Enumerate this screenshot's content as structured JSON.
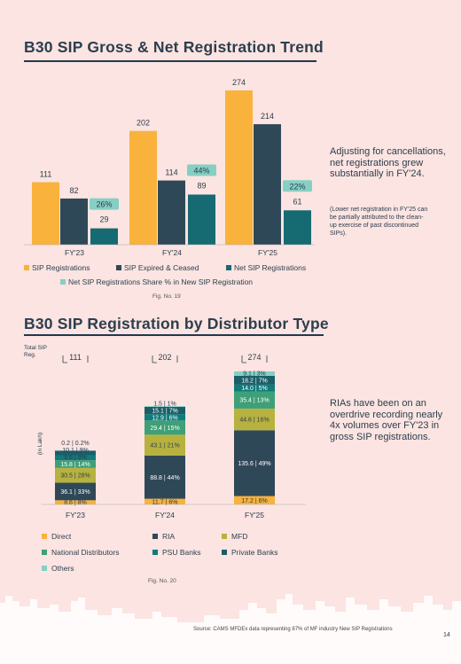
{
  "section1": {
    "title": "B30 SIP Gross & Net Registration Trend",
    "fig_label": "Fig. No. 19",
    "side_text": "Adjusting for cancellations, net registrations grew substantially in FY'24.",
    "side_note": "(Lower net registration in FY'25 can be partially attributed to the clean-up exercise of past discontinued SIPs)."
  },
  "section2": {
    "title": "B30 SIP Registration by Distributor Type",
    "fig_label": "Fig. No. 20",
    "side_text": "RIAs have been on an overdrive recording nearly 4x volumes over FY'23 in gross SIP registrations.",
    "total_label": "Total SIP Reg.",
    "unit_label": "(in Lakh)"
  },
  "footer": {
    "source": "Source: CAMS MFDEx data representing 87% of MF industry New SIP Registrations",
    "page": "14"
  },
  "colors": {
    "direct": "#f9b23b",
    "ria": "#2f4858",
    "mfd": "#b7b23f",
    "national": "#3f9f77",
    "psu": "#0f7b7b",
    "private": "#1a5e68",
    "others": "#86cfc3",
    "gross": "#f9b23b",
    "expired": "#2f4858",
    "net": "#166a72",
    "share": "#86cfc3"
  },
  "chart_data": [
    {
      "type": "bar",
      "categories": [
        "FY'23",
        "FY'24",
        "FY'25"
      ],
      "series": [
        {
          "name": "SIP Registrations",
          "values": [
            111,
            202,
            274
          ]
        },
        {
          "name": "SIP Expired & Ceased",
          "values": [
            82,
            114,
            214
          ]
        },
        {
          "name": "Net SIP Registrations",
          "values": [
            29,
            89,
            61
          ]
        },
        {
          "name": "Net SIP Registrations Share % in New SIP Registration",
          "values": [
            "26%",
            "44%",
            "22%"
          ]
        }
      ]
    },
    {
      "type": "bar",
      "stacked": true,
      "categories": [
        "FY'23",
        "FY'24",
        "FY'25"
      ],
      "totals": [
        111,
        202,
        274
      ],
      "series": [
        {
          "name": "Direct",
          "values": [
            8.6,
            11.7,
            17.2
          ],
          "labels": [
            "8.6 | 8%",
            "11.7 | 6%",
            "17.2 | 6%"
          ]
        },
        {
          "name": "RIA",
          "values": [
            36.1,
            88.8,
            135.6
          ],
          "labels": [
            "36.1 | 33%",
            "88.8 | 44%",
            "135.6 | 49%"
          ]
        },
        {
          "name": "MFD",
          "values": [
            30.5,
            43.1,
            44.6
          ],
          "labels": [
            "30.5 | 28%",
            "43.1 | 21%",
            "44.6 | 16%"
          ]
        },
        {
          "name": "National Distributors",
          "values": [
            15.8,
            29.4,
            35.4
          ],
          "labels": [
            "15.8 | 14%",
            "29.4 | 15%",
            "35.4 | 13%"
          ]
        },
        {
          "name": "PSU Banks",
          "values": [
            9.6,
            12.9,
            14.0
          ],
          "labels": [
            "9.6 | 9%",
            "12.9 | 6%",
            "14.0 | 5%"
          ]
        },
        {
          "name": "Private Banks",
          "values": [
            10.1,
            15.1,
            18.2
          ],
          "labels": [
            "10.1 | 9%",
            "15.1 | 7%",
            "18.2 | 7%"
          ]
        },
        {
          "name": "Others",
          "values": [
            0.2,
            1.5,
            9.1
          ],
          "labels": [
            "0.2 | 0.2%",
            "1.5 | 1%",
            "9.1 | 3%"
          ]
        }
      ]
    }
  ]
}
